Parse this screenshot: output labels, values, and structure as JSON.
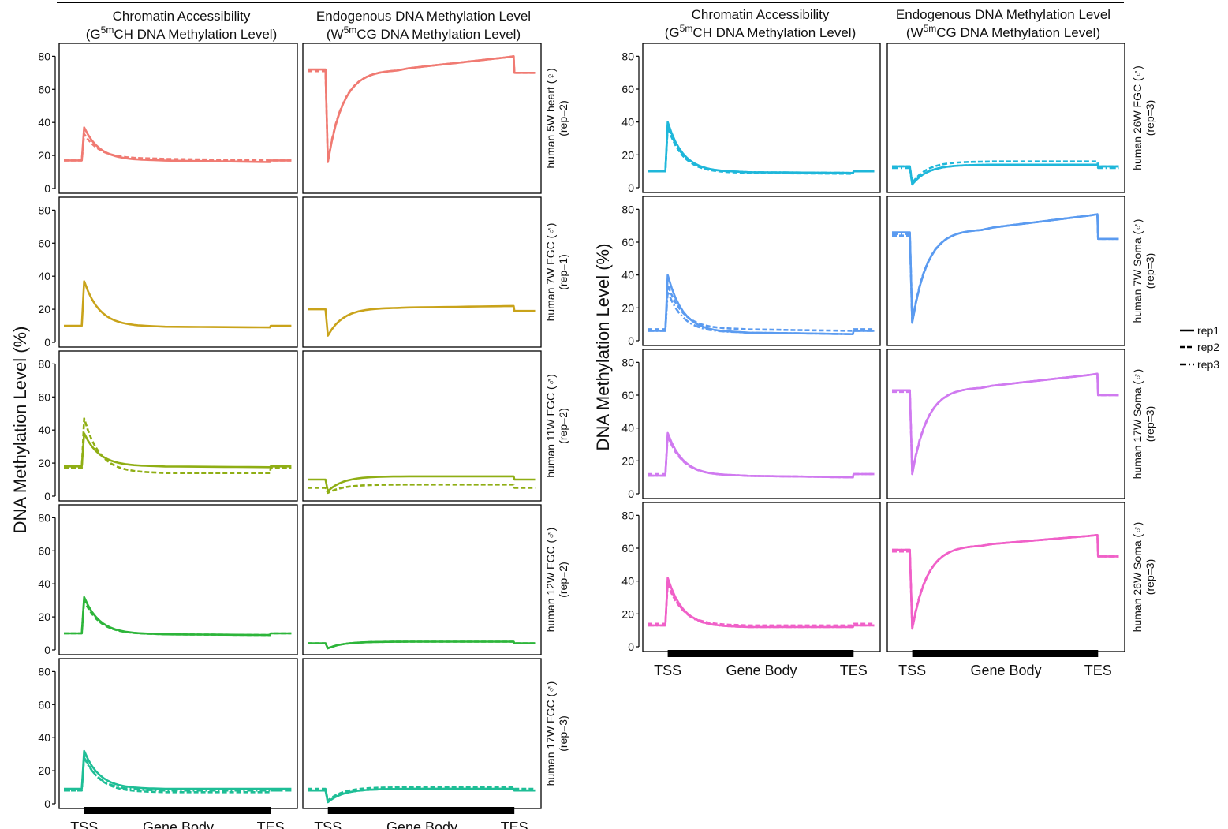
{
  "figure": {
    "ylabel": "DNA Methylation Level (%)",
    "column_titles": {
      "ca": {
        "line1": "Chromatin Accessibility",
        "line2_pre": "(G",
        "line2_sup": "5m",
        "line2_post": "CH DNA Methylation Level)"
      },
      "me": {
        "line1": "Endogenous DNA Methylation Level",
        "line2_pre": "(W",
        "line2_sup": "5m",
        "line2_post": "CG DNA Methylation Level)"
      }
    },
    "x_ticks": [
      "TSS",
      "Gene Body",
      "TES"
    ],
    "y_ticks": [
      0,
      20,
      40,
      60,
      80
    ],
    "legend": [
      {
        "label": "rep1",
        "style": "solid"
      },
      {
        "label": "rep2",
        "style": "dashed"
      },
      {
        "label": "rep3",
        "style": "dashdot"
      }
    ],
    "symbols": {
      "female": "♀",
      "male": "♂"
    }
  },
  "chart_data": [
    {
      "type": "line",
      "panel": "left",
      "row": 0,
      "row_label": "human 5W heart",
      "sex": "female",
      "reps": "(rep=2)",
      "color": "#F07A72",
      "ylim": [
        0,
        80
      ],
      "x_region": [
        "TSS",
        "Gene Body",
        "TES"
      ],
      "ca": [
        {
          "name": "rep1",
          "values": [
            17,
            37,
            20,
            17,
            16,
            16,
            17
          ]
        },
        {
          "name": "rep2",
          "values": [
            17,
            33,
            19,
            18,
            17,
            17,
            17
          ]
        }
      ],
      "me": [
        {
          "name": "rep1",
          "values": [
            72,
            16,
            56,
            72,
            78,
            80,
            70
          ]
        },
        {
          "name": "rep2",
          "values": [
            71,
            17,
            57,
            72,
            78,
            80,
            70
          ]
        }
      ]
    },
    {
      "type": "line",
      "panel": "left",
      "row": 1,
      "row_label": "human 7W  FGC",
      "sex": "male",
      "reps": "(rep=1)",
      "color": "#C9A31A",
      "ylim": [
        0,
        80
      ],
      "x_region": [
        "TSS",
        "Gene Body",
        "TES"
      ],
      "ca": [
        {
          "name": "rep1",
          "values": [
            10,
            37,
            12,
            9.5,
            9,
            9,
            10
          ]
        }
      ],
      "me": [
        {
          "name": "rep1",
          "values": [
            20,
            4,
            17,
            21,
            22,
            22,
            19
          ]
        }
      ]
    },
    {
      "type": "line",
      "panel": "left",
      "row": 2,
      "row_label": "human 11W  FGC",
      "sex": "male",
      "reps": "(rep=2)",
      "color": "#8FAE14",
      "ylim": [
        0,
        80
      ],
      "x_region": [
        "TSS",
        "Gene Body",
        "TES"
      ],
      "ca": [
        {
          "name": "rep1",
          "values": [
            18,
            38,
            20,
            18,
            17.5,
            17.5,
            18
          ]
        },
        {
          "name": "rep2",
          "values": [
            17,
            47,
            16,
            14,
            14,
            14,
            17
          ]
        }
      ],
      "me": [
        {
          "name": "rep1",
          "values": [
            10,
            3,
            10,
            12,
            12,
            12,
            10
          ]
        },
        {
          "name": "rep2",
          "values": [
            5,
            2,
            5,
            7,
            7,
            7,
            5
          ]
        }
      ]
    },
    {
      "type": "line",
      "panel": "left",
      "row": 3,
      "row_label": "human 12W  FGC",
      "sex": "male",
      "reps": "(rep=2)",
      "color": "#2DB53A",
      "ylim": [
        0,
        80
      ],
      "x_region": [
        "TSS",
        "Gene Body",
        "TES"
      ],
      "ca": [
        {
          "name": "rep1",
          "values": [
            10,
            32,
            12,
            9.5,
            9,
            9,
            10
          ]
        },
        {
          "name": "rep2",
          "values": [
            10,
            30,
            11,
            9.5,
            9,
            9,
            10
          ]
        }
      ],
      "me": [
        {
          "name": "rep1",
          "values": [
            4,
            1,
            4,
            5,
            5,
            5,
            4
          ]
        },
        {
          "name": "rep2",
          "values": [
            4,
            1,
            4,
            5,
            5,
            5,
            4
          ]
        }
      ]
    },
    {
      "type": "line",
      "panel": "left",
      "row": 4,
      "row_label": "human 17W  FGC",
      "sex": "male",
      "reps": "(rep=3)",
      "color": "#1EBE96",
      "ylim": [
        0,
        80
      ],
      "x_region": [
        "TSS",
        "Gene Body",
        "TES"
      ],
      "ca": [
        {
          "name": "rep1",
          "values": [
            9,
            32,
            11,
            9,
            9,
            9,
            9
          ]
        },
        {
          "name": "rep2",
          "values": [
            8,
            29,
            9,
            7,
            7,
            7,
            8
          ]
        },
        {
          "name": "rep3",
          "values": [
            8,
            28,
            10,
            8,
            8,
            8,
            8
          ]
        }
      ],
      "me": [
        {
          "name": "rep1",
          "values": [
            8,
            1,
            7,
            9,
            9,
            9,
            8
          ]
        },
        {
          "name": "rep2",
          "values": [
            9,
            2,
            8,
            10,
            10,
            10,
            9
          ]
        },
        {
          "name": "rep3",
          "values": [
            8,
            1,
            7,
            9,
            9,
            9,
            8
          ]
        }
      ]
    },
    {
      "type": "line",
      "panel": "right",
      "row": 0,
      "row_label": "human 26W  FGC",
      "sex": "male",
      "reps": "(rep=3)",
      "color": "#1FB7DA",
      "ylim": [
        0,
        80
      ],
      "x_region": [
        "TSS",
        "Gene Body",
        "TES"
      ],
      "ca": [
        {
          "name": "rep1",
          "values": [
            10,
            40,
            12,
            9.5,
            9,
            9,
            10
          ]
        },
        {
          "name": "rep2",
          "values": [
            10,
            37,
            11,
            9,
            8.5,
            8.5,
            10
          ]
        },
        {
          "name": "rep3",
          "values": [
            10,
            38,
            12,
            9.5,
            9,
            9,
            10
          ]
        }
      ],
      "me": [
        {
          "name": "rep1",
          "values": [
            13,
            2,
            11,
            14,
            14,
            14,
            13
          ]
        },
        {
          "name": "rep2",
          "values": [
            13,
            3,
            13,
            16,
            16,
            16,
            13
          ]
        },
        {
          "name": "rep3",
          "values": [
            12,
            2,
            11,
            14,
            14,
            14,
            12
          ]
        }
      ]
    },
    {
      "type": "line",
      "panel": "right",
      "row": 1,
      "row_label": "human 7W  Soma",
      "sex": "male",
      "reps": "(rep=3)",
      "color": "#5B9BF0",
      "ylim": [
        0,
        80
      ],
      "x_region": [
        "TSS",
        "Gene Body",
        "TES"
      ],
      "ca": [
        {
          "name": "rep1",
          "values": [
            6,
            40,
            8,
            5,
            4,
            4,
            6
          ]
        },
        {
          "name": "rep2",
          "values": [
            7,
            34,
            10,
            7,
            6,
            6,
            7
          ]
        },
        {
          "name": "rep3",
          "values": [
            6,
            30,
            8,
            5,
            4,
            4,
            6
          ]
        }
      ],
      "me": [
        {
          "name": "rep1",
          "values": [
            66,
            11,
            50,
            68,
            75,
            77,
            62
          ]
        },
        {
          "name": "rep2",
          "values": [
            64,
            12,
            52,
            68,
            75,
            77,
            62
          ]
        },
        {
          "name": "rep3",
          "values": [
            65,
            11,
            50,
            68,
            75,
            77,
            62
          ]
        }
      ]
    },
    {
      "type": "line",
      "panel": "right",
      "row": 2,
      "row_label": "human 17W  Soma",
      "sex": "male",
      "reps": "(rep=3)",
      "color": "#D07AF0",
      "ylim": [
        0,
        80
      ],
      "x_region": [
        "TSS",
        "Gene Body",
        "TES"
      ],
      "ca": [
        {
          "name": "rep1",
          "values": [
            11,
            37,
            13,
            11,
            10,
            10,
            12
          ]
        },
        {
          "name": "rep2",
          "values": [
            12,
            35,
            13,
            11,
            10,
            10,
            12
          ]
        },
        {
          "name": "rep3",
          "values": [
            11,
            36,
            13,
            11,
            10,
            10,
            12
          ]
        }
      ],
      "me": [
        {
          "name": "rep1",
          "values": [
            63,
            12,
            50,
            65,
            71,
            73,
            60
          ]
        },
        {
          "name": "rep2",
          "values": [
            62,
            13,
            51,
            65,
            71,
            73,
            60
          ]
        },
        {
          "name": "rep3",
          "values": [
            63,
            12,
            50,
            65,
            71,
            73,
            60
          ]
        }
      ]
    },
    {
      "type": "line",
      "panel": "right",
      "row": 3,
      "row_label": "human 26W  Soma",
      "sex": "male",
      "reps": "(rep=3)",
      "color": "#F060C8",
      "ylim": [
        0,
        80
      ],
      "x_region": [
        "TSS",
        "Gene Body",
        "TES"
      ],
      "ca": [
        {
          "name": "rep1",
          "values": [
            13,
            42,
            15,
            12,
            12,
            12,
            13
          ]
        },
        {
          "name": "rep2",
          "values": [
            14,
            38,
            16,
            13,
            13,
            13,
            14
          ]
        },
        {
          "name": "rep3",
          "values": [
            13,
            40,
            15,
            12,
            12,
            12,
            13
          ]
        }
      ],
      "me": [
        {
          "name": "rep1",
          "values": [
            59,
            11,
            46,
            62,
            66,
            68,
            55
          ]
        },
        {
          "name": "rep2",
          "values": [
            58,
            12,
            48,
            62,
            67,
            68,
            55
          ]
        },
        {
          "name": "rep3",
          "values": [
            59,
            11,
            46,
            62,
            66,
            68,
            55
          ]
        }
      ]
    }
  ]
}
